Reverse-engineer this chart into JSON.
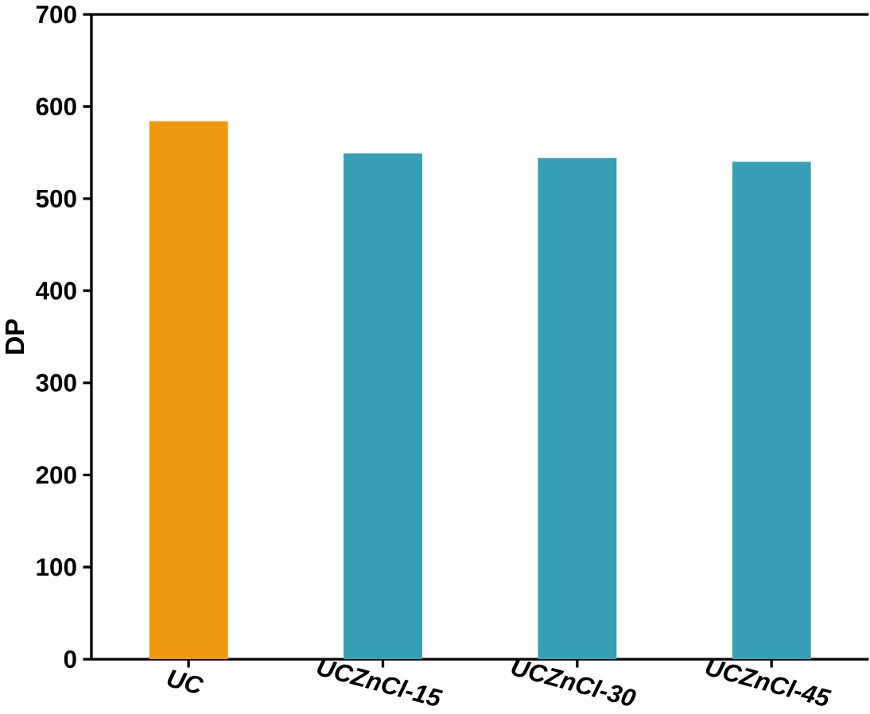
{
  "chart_data": {
    "type": "bar",
    "ylabel": "DP",
    "categories": [
      "UC",
      "UCZnCl-15",
      "UCZnCl-30",
      "UCZnCl-45"
    ],
    "values": [
      584,
      549,
      544,
      540
    ],
    "colors": [
      "#f0980e",
      "#35a0b6",
      "#35a0b6",
      "#35a0b6"
    ],
    "ylim": [
      0,
      700
    ],
    "yticks": [
      0,
      100,
      200,
      300,
      400,
      500,
      600,
      700
    ]
  }
}
